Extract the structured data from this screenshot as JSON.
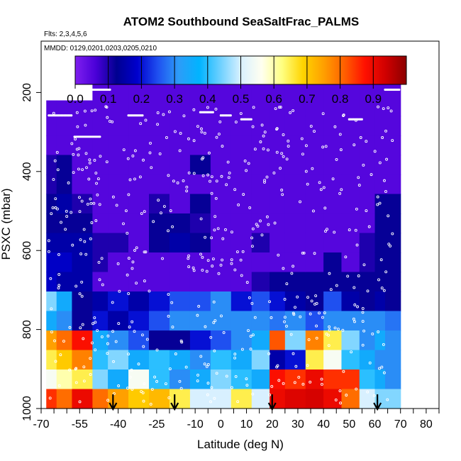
{
  "chart_data": {
    "type": "heatmap",
    "title": "ATOM2 Southbound SeaSaltFrac_PALMS",
    "flights_note": "Flts: 2,3,4,5,6",
    "dates_note": "MMDD: 0129,0201,0203,0205,0210",
    "xlabel": "Latitude (deg N)",
    "ylabel": "PSXC (mbar)",
    "xlim": [
      -70,
      85
    ],
    "ylim": [
      1000,
      70
    ],
    "y_reversed": true,
    "x_ticks": [
      -70,
      -55,
      -40,
      -25,
      -10,
      0,
      10,
      20,
      30,
      40,
      50,
      60,
      70,
      80
    ],
    "x_minor_ticks": [
      -65,
      -60,
      -50,
      -45,
      -35,
      -30,
      -20,
      -15,
      -5,
      5,
      15,
      25,
      35,
      45,
      55,
      65,
      75,
      85
    ],
    "y_ticks": [
      200,
      400,
      600,
      800,
      1000
    ],
    "colorbar": {
      "ticks": [
        0.0,
        0.1,
        0.2,
        0.3,
        0.4,
        0.5,
        0.6,
        0.7,
        0.8,
        0.9
      ],
      "range": [
        0,
        1.0
      ],
      "colors": [
        "#7f1fef",
        "#4a00d8",
        "#000090",
        "#0000cd",
        "#1f50f0",
        "#2d9cf8",
        "#00b4ff",
        "#6cd0ff",
        "#d8f0ff",
        "#fffff0",
        "#ffff80",
        "#ffd400",
        "#ffa000",
        "#ff6000",
        "#ff1000",
        "#d00000",
        "#8b0000"
      ]
    },
    "arrows_latitude": [
      -42,
      -18,
      20,
      61
    ],
    "columns": [
      {
        "x": [
          -68,
          -64
        ],
        "ptop": 220,
        "cells": [
          0.05,
          0.05,
          0.05,
          0.1,
          0.1,
          0.12,
          0.12,
          0.15,
          0.18,
          0.18,
          0.45,
          0.35,
          0.75,
          0.65,
          0.55,
          0.85
        ]
      },
      {
        "x": [
          -64,
          -58
        ],
        "ptop": 220,
        "cells": [
          0.05,
          0.05,
          0.05,
          0.12,
          0.12,
          0.15,
          0.12,
          0.15,
          0.18,
          0.15,
          0.35,
          0.3,
          0.8,
          0.7,
          0.6,
          0.8
        ]
      },
      {
        "x": [
          -58,
          -50
        ],
        "ptop": 220,
        "cells": [
          0.05,
          0.05,
          0.05,
          0.05,
          0.05,
          0.1,
          0.12,
          0.15,
          0.15,
          0.15,
          0.12,
          0.12,
          0.88,
          0.78,
          0.65,
          0.9
        ]
      },
      {
        "x": [
          -50,
          -44
        ],
        "ptop": 175,
        "cells": [
          0.05,
          0.05,
          0.05,
          0.05,
          0.05,
          0.05,
          0.05,
          0.1,
          0.1,
          0.05,
          0.15,
          0.2,
          0.35,
          0.4,
          0.45,
          0.8
        ]
      },
      {
        "x": [
          -44,
          -36
        ],
        "ptop": 175,
        "cells": [
          0.05,
          0.05,
          0.05,
          0.05,
          0.05,
          0.05,
          0.05,
          0.1,
          0.05,
          0.05,
          0.2,
          0.15,
          0.3,
          0.45,
          0.35,
          0.75
        ]
      },
      {
        "x": [
          -36,
          -28
        ],
        "ptop": 175,
        "cells": [
          0.05,
          0.05,
          0.05,
          0.05,
          0.05,
          0.05,
          0.05,
          0.05,
          0.05,
          0.05,
          0.15,
          0.2,
          0.25,
          0.35,
          0.55,
          0.7
        ]
      },
      {
        "x": [
          -28,
          -20
        ],
        "ptop": 175,
        "cells": [
          0.05,
          0.05,
          0.05,
          0.05,
          0.05,
          0.1,
          0.12,
          0.12,
          0.05,
          0.05,
          0.2,
          0.25,
          0.12,
          0.4,
          0.4,
          0.72
        ]
      },
      {
        "x": [
          -20,
          -12
        ],
        "ptop": 175,
        "cells": [
          0.05,
          0.05,
          0.05,
          0.05,
          0.05,
          0.05,
          0.12,
          0.15,
          0.05,
          0.05,
          0.25,
          0.3,
          0.12,
          0.35,
          0.3,
          0.65
        ]
      },
      {
        "x": [
          -12,
          -4
        ],
        "ptop": 175,
        "cells": [
          0.05,
          0.05,
          0.05,
          0.12,
          0.05,
          0.12,
          0.1,
          0.12,
          0.05,
          0.05,
          0.25,
          0.3,
          0.2,
          0.3,
          0.35,
          0.5
        ]
      },
      {
        "x": [
          -4,
          4
        ],
        "ptop": 175,
        "cells": [
          0.05,
          0.05,
          0.05,
          0.05,
          0.05,
          0.05,
          0.05,
          0.05,
          0.05,
          0.05,
          0.3,
          0.3,
          0.25,
          0.4,
          0.45,
          0.5
        ]
      },
      {
        "x": [
          4,
          12
        ],
        "ptop": 175,
        "cells": [
          0.05,
          0.05,
          0.05,
          0.05,
          0.05,
          0.05,
          0.05,
          0.05,
          0.05,
          0.05,
          0.2,
          0.3,
          0.3,
          0.35,
          0.4,
          0.65
        ]
      },
      {
        "x": [
          12,
          19
        ],
        "ptop": 175,
        "cells": [
          0.05,
          0.05,
          0.05,
          0.05,
          0.05,
          0.05,
          0.05,
          0.1,
          0.05,
          0.1,
          0.25,
          0.3,
          0.35,
          0.45,
          0.35,
          0.5
        ]
      },
      {
        "x": [
          19,
          25
        ],
        "ptop": 175,
        "cells": [
          0.05,
          0.05,
          0.05,
          0.05,
          0.05,
          0.05,
          0.05,
          0.05,
          0.05,
          0.12,
          0.2,
          0.28,
          0.82,
          0.15,
          0.88,
          0.9
        ]
      },
      {
        "x": [
          25,
          33
        ],
        "ptop": 175,
        "cells": [
          0.05,
          0.05,
          0.05,
          0.05,
          0.05,
          0.05,
          0.05,
          0.05,
          0.05,
          0.12,
          0.15,
          0.3,
          0.45,
          0.2,
          0.85,
          0.92
        ]
      },
      {
        "x": [
          33,
          40
        ],
        "ptop": 175,
        "cells": [
          0.05,
          0.05,
          0.05,
          0.05,
          0.05,
          0.05,
          0.05,
          0.05,
          0.05,
          0.12,
          0.12,
          0.25,
          0.78,
          0.65,
          0.9,
          0.93
        ]
      },
      {
        "x": [
          40,
          47
        ],
        "ptop": 175,
        "cells": [
          0.05,
          0.05,
          0.05,
          0.05,
          0.05,
          0.05,
          0.05,
          0.05,
          0.12,
          0.12,
          0.25,
          0.3,
          0.65,
          0.55,
          0.85,
          0.9
        ]
      },
      {
        "x": [
          47,
          54
        ],
        "ptop": 175,
        "cells": [
          0.05,
          0.05,
          0.05,
          0.05,
          0.05,
          0.05,
          0.05,
          0.05,
          0.05,
          0.12,
          0.15,
          0.3,
          0.45,
          0.4,
          0.85,
          0.8
        ]
      },
      {
        "x": [
          54,
          60
        ],
        "ptop": 175,
        "cells": [
          0.05,
          0.05,
          0.05,
          0.05,
          0.05,
          0.05,
          0.05,
          0.1,
          0.1,
          0.12,
          0.12,
          0.3,
          0.3,
          0.35,
          0.4,
          0.5
        ]
      },
      {
        "x": [
          60,
          64
        ],
        "ptop": 175,
        "cells": [
          0.05,
          0.05,
          0.05,
          0.05,
          0.05,
          0.12,
          0.12,
          0.12,
          0.12,
          0.12,
          0.15,
          0.3,
          0.35,
          0.3,
          0.35,
          0.45
        ]
      },
      {
        "x": [
          64,
          70
        ],
        "ptop": 175,
        "cells": [
          0.05,
          0.05,
          0.05,
          0.05,
          0.05,
          0.12,
          0.12,
          0.12,
          0.12,
          0.12,
          0.12,
          0.28,
          0.3,
          0.3,
          0.3,
          0.45
        ]
      }
    ]
  }
}
